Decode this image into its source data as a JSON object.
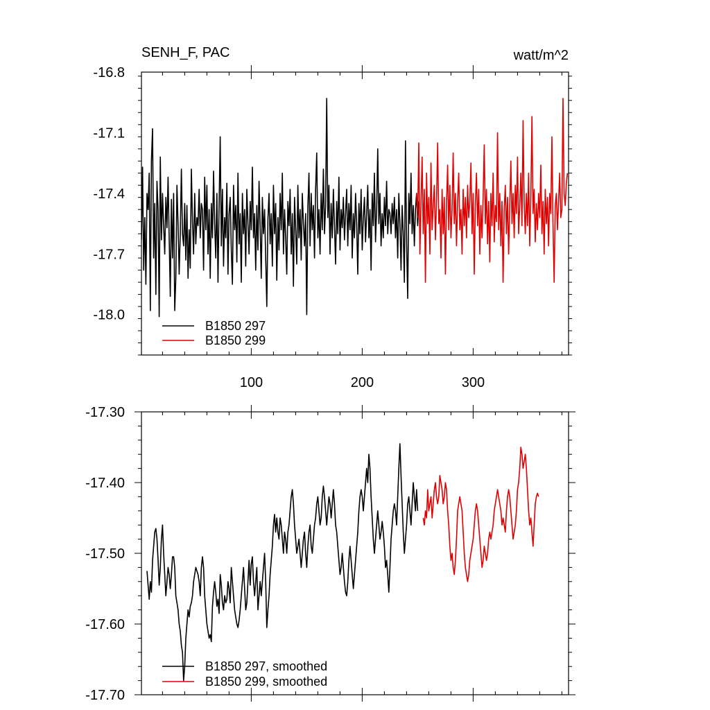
{
  "colors": {
    "series_a": "#000000",
    "series_b": "#e00000"
  },
  "chart_data": [
    {
      "type": "line",
      "title": "SENH_F, PAC",
      "units": "watt/m^2",
      "xlim": [
        1,
        386
      ],
      "ylim": [
        -18.2,
        -16.8
      ],
      "xticks": [
        100,
        200,
        300
      ],
      "xtick_labels": [
        "100",
        "200",
        "300"
      ],
      "yticks": [
        -16.8,
        -17.1,
        -17.4,
        -17.7,
        -18.0
      ],
      "ytick_labels": [
        "-16.8",
        "-17.1",
        "-17.4",
        "-17.7",
        "-18.0"
      ],
      "legend_position": "bottom-left",
      "series": [
        {
          "name": "B1850 297",
          "color": "#000000",
          "x_start": 1,
          "values": [
            -17.63,
            -17.27,
            -17.78,
            -17.52,
            -17.85,
            -17.4,
            -17.48,
            -17.3,
            -17.98,
            -17.24,
            -17.08,
            -17.72,
            -17.45,
            -17.9,
            -17.34,
            -17.48,
            -18.01,
            -17.22,
            -17.63,
            -17.4,
            -17.56,
            -17.7,
            -17.42,
            -17.57,
            -17.32,
            -17.62,
            -17.91,
            -17.43,
            -17.72,
            -17.4,
            -17.98,
            -17.82,
            -17.36,
            -17.55,
            -17.8,
            -17.6,
            -17.28,
            -17.6,
            -17.66,
            -17.45,
            -17.73,
            -17.46,
            -17.82,
            -17.58,
            -17.77,
            -17.28,
            -17.54,
            -17.7,
            -17.4,
            -17.65,
            -17.52,
            -17.56,
            -17.38,
            -17.62,
            -17.45,
            -17.48,
            -17.78,
            -17.32,
            -17.58,
            -17.36,
            -17.7,
            -17.48,
            -17.82,
            -17.45,
            -17.62,
            -17.29,
            -17.55,
            -17.72,
            -17.4,
            -17.84,
            -17.46,
            -17.12,
            -17.66,
            -17.38,
            -17.76,
            -17.52,
            -17.62,
            -17.35,
            -17.8,
            -17.5,
            -17.42,
            -17.68,
            -17.85,
            -17.36,
            -17.58,
            -17.46,
            -17.74,
            -17.3,
            -17.65,
            -17.5,
            -17.84,
            -17.4,
            -17.6,
            -17.48,
            -17.76,
            -17.38,
            -17.55,
            -17.7,
            -17.44,
            -17.58,
            -17.27,
            -17.62,
            -17.5,
            -17.78,
            -17.46,
            -17.68,
            -17.34,
            -17.56,
            -17.82,
            -17.42,
            -17.6,
            -17.48,
            -17.72,
            -17.96,
            -17.53,
            -17.4,
            -17.65,
            -17.5,
            -17.76,
            -17.36,
            -17.6,
            -17.45,
            -17.83,
            -17.52,
            -17.68,
            -17.4,
            -17.58,
            -17.3,
            -17.7,
            -17.48,
            -17.62,
            -17.8,
            -17.44,
            -17.56,
            -17.38,
            -17.7,
            -17.5,
            -17.86,
            -17.42,
            -17.58,
            -17.75,
            -17.36,
            -17.62,
            -17.48,
            -17.73,
            -17.4,
            -17.55,
            -17.66,
            -17.5,
            -18.0,
            -17.47,
            -17.3,
            -17.66,
            -17.4,
            -17.58,
            -17.46,
            -17.72,
            -17.38,
            -17.2,
            -17.62,
            -17.48,
            -17.7,
            -17.4,
            -17.58,
            -17.28,
            -17.6,
            -17.46,
            -16.93,
            -17.52,
            -17.36,
            -17.7,
            -17.45,
            -17.62,
            -17.38,
            -17.56,
            -17.75,
            -17.44,
            -17.6,
            -17.32,
            -17.68,
            -17.48,
            -17.57,
            -17.42,
            -17.63,
            -17.5,
            -17.38,
            -17.66,
            -17.45,
            -17.58,
            -17.36,
            -17.72,
            -17.5,
            -17.62,
            -17.4,
            -17.55,
            -17.8,
            -17.45,
            -17.6,
            -17.38,
            -17.68,
            -17.52,
            -17.42,
            -17.64,
            -17.5,
            -17.36,
            -17.62,
            -17.48,
            -17.78,
            -17.4,
            -17.56,
            -17.3,
            -17.64,
            -17.48,
            -17.18,
            -17.55,
            -17.4,
            -17.66,
            -17.5,
            -17.62,
            -17.42,
            -17.56,
            -17.34,
            -17.6,
            -17.48,
            -17.5,
            -17.6,
            -17.45,
            -17.55,
            -17.42,
            -17.62,
            -17.48,
            -17.72,
            -17.4,
            -17.55,
            -17.78,
            -17.46,
            -17.6,
            -17.84,
            -17.14,
            -17.64,
            -17.92,
            -17.4,
            -17.55,
            -17.3,
            -17.6,
            -17.46,
            -17.66,
            -17.48,
            -17.4,
            -17.56,
            -17.44
          ],
          "x_start_note": ""
        },
        {
          "name": "B1850 299",
          "color": "#e00000",
          "x_start": 249,
          "values": [
            -17.4,
            -17.52,
            -17.15,
            -17.7,
            -17.45,
            -17.22,
            -17.6,
            -17.38,
            -17.84,
            -17.3,
            -17.55,
            -17.42,
            -17.7,
            -17.25,
            -17.58,
            -17.46,
            -17.36,
            -17.63,
            -17.44,
            -17.15,
            -17.55,
            -17.48,
            -17.72,
            -17.38,
            -17.6,
            -17.42,
            -17.8,
            -17.45,
            -17.26,
            -17.58,
            -17.36,
            -17.62,
            -17.48,
            -17.2,
            -17.55,
            -17.4,
            -17.66,
            -17.44,
            -17.3,
            -17.58,
            -17.48,
            -17.7,
            -17.38,
            -17.56,
            -17.42,
            -17.62,
            -17.36,
            -17.52,
            -17.44,
            -17.25,
            -17.6,
            -17.4,
            -17.8,
            -17.45,
            -17.3,
            -17.56,
            -17.38,
            -17.7,
            -17.46,
            -17.62,
            -17.42,
            -17.16,
            -17.55,
            -17.38,
            -17.65,
            -17.44,
            -17.74,
            -17.4,
            -17.56,
            -17.3,
            -17.64,
            -17.46,
            -17.54,
            -17.1,
            -17.58,
            -17.4,
            -17.66,
            -17.44,
            -17.84,
            -17.48,
            -17.36,
            -17.6,
            -17.42,
            -17.7,
            -17.46,
            -17.24,
            -17.55,
            -17.4,
            -17.62,
            -17.36,
            -17.5,
            -17.22,
            -17.6,
            -17.46,
            -17.3,
            -17.56,
            -17.04,
            -17.45,
            -17.6,
            -17.4,
            -17.56,
            -17.3,
            -17.66,
            -17.42,
            -17.02,
            -17.5,
            -17.38,
            -17.64,
            -17.45,
            -17.58,
            -17.4,
            -17.52,
            -17.26,
            -17.6,
            -17.44,
            -17.7,
            -17.38,
            -17.55,
            -17.42,
            -17.66,
            -17.4,
            -17.5,
            -17.12,
            -17.56,
            -17.84,
            -17.46,
            -17.4,
            -17.58,
            -17.44,
            -17.3,
            -17.52,
            -17.48,
            -16.93,
            -17.4,
            -17.46,
            -17.35,
            -17.3
          ]
        }
      ]
    },
    {
      "type": "line",
      "xlim": [
        1,
        386
      ],
      "ylim": [
        -17.7,
        -17.3
      ],
      "yticks": [
        -17.3,
        -17.4,
        -17.5,
        -17.6,
        -17.7
      ],
      "ytick_labels": [
        "-17.30",
        "-17.40",
        "-17.50",
        "-17.60",
        "-17.70"
      ],
      "legend_position": "bottom-left",
      "series": [
        {
          "name": "B1850 297, smoothed",
          "color": "#000000",
          "x_start": 6,
          "values": [
            -17.525,
            -17.545,
            -17.565,
            -17.54,
            -17.555,
            -17.51,
            -17.49,
            -17.47,
            -17.465,
            -17.48,
            -17.51,
            -17.545,
            -17.52,
            -17.48,
            -17.46,
            -17.5,
            -17.53,
            -17.56,
            -17.54,
            -17.52,
            -17.53,
            -17.55,
            -17.53,
            -17.505,
            -17.505,
            -17.52,
            -17.56,
            -17.57,
            -17.58,
            -17.6,
            -17.61,
            -17.63,
            -17.64,
            -17.68,
            -17.66,
            -17.62,
            -17.6,
            -17.58,
            -17.59,
            -17.575,
            -17.57,
            -17.56,
            -17.54,
            -17.53,
            -17.52,
            -17.525,
            -17.53,
            -17.54,
            -17.56,
            -17.52,
            -17.505,
            -17.52,
            -17.56,
            -17.58,
            -17.6,
            -17.61,
            -17.62,
            -17.615,
            -17.625,
            -17.575,
            -17.555,
            -17.54,
            -17.555,
            -17.575,
            -17.565,
            -17.585,
            -17.53,
            -17.545,
            -17.57,
            -17.58,
            -17.56,
            -17.57,
            -17.565,
            -17.54,
            -17.55,
            -17.57,
            -17.52,
            -17.54,
            -17.56,
            -17.58,
            -17.59,
            -17.6,
            -17.605,
            -17.595,
            -17.58,
            -17.56,
            -17.54,
            -17.52,
            -17.55,
            -17.58,
            -17.57,
            -17.54,
            -17.51,
            -17.545,
            -17.515,
            -17.505,
            -17.54,
            -17.56,
            -17.54,
            -17.52,
            -17.58,
            -17.56,
            -17.54,
            -17.56,
            -17.54,
            -17.52,
            -17.5,
            -17.54,
            -17.605,
            -17.58,
            -17.56,
            -17.53,
            -17.51,
            -17.49,
            -17.46,
            -17.445,
            -17.47,
            -17.45,
            -17.47,
            -17.48,
            -17.45,
            -17.46,
            -17.48,
            -17.5,
            -17.47,
            -17.48,
            -17.5,
            -17.47,
            -17.46,
            -17.44,
            -17.42,
            -17.41,
            -17.43,
            -17.46,
            -17.48,
            -17.5,
            -17.49,
            -17.48,
            -17.5,
            -17.52,
            -17.5,
            -17.48,
            -17.47,
            -17.5,
            -17.52,
            -17.49,
            -17.47,
            -17.46,
            -17.49,
            -17.5,
            -17.48,
            -17.46,
            -17.45,
            -17.43,
            -17.42,
            -17.44,
            -17.46,
            -17.45,
            -17.42,
            -17.405,
            -17.42,
            -17.44,
            -17.46,
            -17.44,
            -17.42,
            -17.43,
            -17.45,
            -17.43,
            -17.41,
            -17.43,
            -17.46,
            -17.47,
            -17.49,
            -17.51,
            -17.53,
            -17.52,
            -17.5,
            -17.52,
            -17.54,
            -17.555,
            -17.56,
            -17.54,
            -17.51,
            -17.49,
            -17.51,
            -17.53,
            -17.55,
            -17.53,
            -17.51,
            -17.49,
            -17.47,
            -17.44,
            -17.42,
            -17.41,
            -17.42,
            -17.44,
            -17.42,
            -17.4,
            -17.38,
            -17.4,
            -17.36,
            -17.38,
            -17.42,
            -17.45,
            -17.48,
            -17.5,
            -17.48,
            -17.46,
            -17.44,
            -17.46,
            -17.48,
            -17.47,
            -17.455,
            -17.47,
            -17.49,
            -17.52,
            -17.51,
            -17.53,
            -17.555,
            -17.52,
            -17.48,
            -17.46,
            -17.44,
            -17.43,
            -17.44,
            -17.46,
            -17.42,
            -17.38,
            -17.345,
            -17.39,
            -17.43,
            -17.47,
            -17.5,
            -17.48,
            -17.46,
            -17.43,
            -17.42,
            -17.44,
            -17.46,
            -17.43,
            -17.4,
            -17.42,
            -17.44,
            -17.41,
            -17.44
          ]
        },
        {
          "name": "B1850 299, smoothed",
          "color": "#e00000",
          "x_start": 255,
          "values": [
            -17.45,
            -17.46,
            -17.44,
            -17.45,
            -17.41,
            -17.44,
            -17.43,
            -17.42,
            -17.45,
            -17.43,
            -17.41,
            -17.4,
            -17.42,
            -17.43,
            -17.42,
            -17.39,
            -17.4,
            -17.41,
            -17.43,
            -17.42,
            -17.4,
            -17.41,
            -17.44,
            -17.46,
            -17.49,
            -17.51,
            -17.5,
            -17.52,
            -17.53,
            -17.51,
            -17.48,
            -17.44,
            -17.43,
            -17.42,
            -17.43,
            -17.44,
            -17.47,
            -17.5,
            -17.52,
            -17.53,
            -17.54,
            -17.53,
            -17.51,
            -17.5,
            -17.49,
            -17.48,
            -17.46,
            -17.44,
            -17.43,
            -17.44,
            -17.46,
            -17.48,
            -17.5,
            -17.52,
            -17.51,
            -17.49,
            -17.5,
            -17.51,
            -17.5,
            -17.48,
            -17.47,
            -17.48,
            -17.47,
            -17.46,
            -17.44,
            -17.43,
            -17.42,
            -17.41,
            -17.42,
            -17.43,
            -17.44,
            -17.46,
            -17.45,
            -17.46,
            -17.47,
            -17.44,
            -17.42,
            -17.41,
            -17.42,
            -17.44,
            -17.46,
            -17.48,
            -17.47,
            -17.46,
            -17.44,
            -17.41,
            -17.4,
            -17.38,
            -17.35,
            -17.36,
            -17.38,
            -17.37,
            -17.36,
            -17.38,
            -17.41,
            -17.44,
            -17.46,
            -17.45,
            -17.47,
            -17.49,
            -17.46,
            -17.43,
            -17.42,
            -17.415,
            -17.42
          ]
        }
      ]
    }
  ]
}
